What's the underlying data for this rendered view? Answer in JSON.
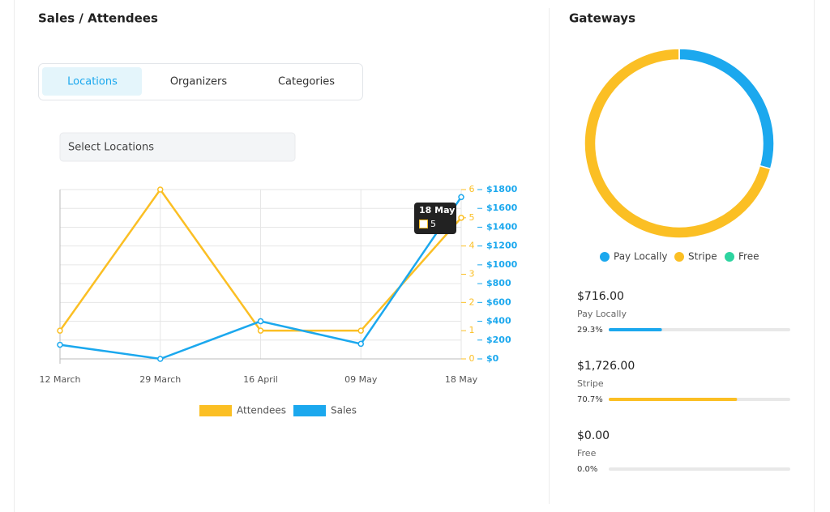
{
  "tabs": [
    "Locations",
    "Organizers",
    "Categories"
  ],
  "active_tab": 0,
  "select_placeholder": "Select Locations",
  "chart_data": [
    {
      "type": "line",
      "title": "Sales / Attendees",
      "categories": [
        "12 March",
        "29 March",
        "16 April",
        "09 May",
        "18 May"
      ],
      "series": [
        {
          "name": "Attendees",
          "color": "#fbbf24",
          "values": [
            1,
            6,
            1,
            1,
            5
          ]
        },
        {
          "name": "Sales",
          "color": "#1ba8ee",
          "axis": "y2",
          "values": [
            150,
            0,
            400,
            160,
            1720
          ]
        }
      ],
      "ylim": [
        0,
        6
      ],
      "yticks": [
        0,
        1,
        2,
        3,
        4,
        5,
        6
      ],
      "y2lim": [
        0,
        1800
      ],
      "y2ticks": [
        {
          "value": 0,
          "label": "$0"
        },
        {
          "value": 200,
          "label": "$200"
        },
        {
          "value": 400,
          "label": "$400"
        },
        {
          "value": 600,
          "label": "$600"
        },
        {
          "value": 800,
          "label": "$800"
        },
        {
          "value": 1000,
          "label": "$1000"
        },
        {
          "value": 1200,
          "label": "$1200"
        },
        {
          "value": 1400,
          "label": "$1400"
        },
        {
          "value": 1600,
          "label": "$1600"
        },
        {
          "value": 1800,
          "label": "$1800"
        }
      ],
      "grid": true,
      "legend": "bottom"
    },
    {
      "type": "pie",
      "title": "Gateways",
      "categories": [
        "Pay Locally",
        "Stripe",
        "Free"
      ],
      "values": [
        716,
        1726,
        0
      ],
      "value_labels": [
        "$716.00",
        "$1,726.00",
        "$0.00"
      ],
      "colors": [
        "#1ba8ee",
        "#fbbf24",
        "#2dd4a0"
      ],
      "percentages": [
        29.3,
        70.7,
        0
      ],
      "percentage_labels": [
        "29.3%",
        "70.7%",
        "0.0%"
      ],
      "legend": "bottom"
    }
  ]
}
